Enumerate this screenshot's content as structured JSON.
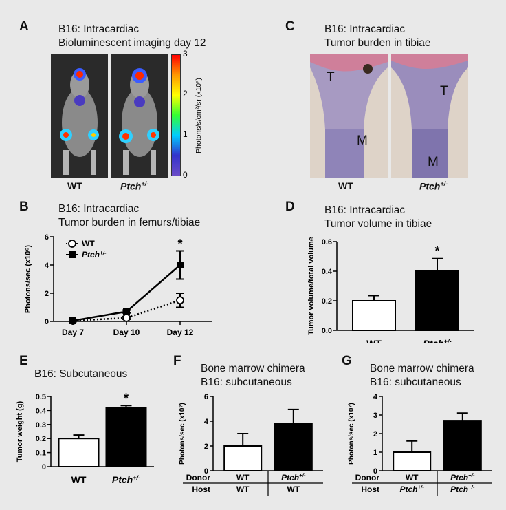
{
  "panelA": {
    "label": "A",
    "title1": "B16: Intracardiac",
    "title2": "Bioluminescent imaging day 12",
    "colorbar_label": "Photons/s/cm²/sr (x10⁵)",
    "colorbar_ticks": [
      "3",
      "2",
      "1",
      "0"
    ],
    "group_wt": "WT",
    "group_ptch_base": "Ptch",
    "group_ptch_sup": "+/-"
  },
  "panelC": {
    "label": "C",
    "title1": "B16: Intracardiac",
    "title2": "Tumor burden in tibiae",
    "mark_t": "T",
    "mark_m": "M",
    "group_wt": "WT",
    "group_ptch_base": "Ptch",
    "group_ptch_sup": "+/-"
  },
  "colors": {
    "background": "#e9e9e9",
    "filled": "#000000",
    "open": "#ffffff"
  },
  "chart_data": [
    {
      "id": "B",
      "label": "B",
      "type": "line",
      "title": "B16: Intracardiac",
      "subtitle": "Tumor burden in femurs/tibiae",
      "ylabel": "Photons/sec (x10⁶)",
      "categories": [
        "Day 7",
        "Day 10",
        "Day 12"
      ],
      "yticks": [
        "0",
        "2",
        "4",
        "6"
      ],
      "ylim": [
        0,
        6
      ],
      "series": [
        {
          "name": "WT",
          "values": [
            0.05,
            0.25,
            1.5
          ],
          "errors": [
            0.05,
            0.1,
            0.5
          ],
          "style": "dotted-open-circle"
        },
        {
          "name": "Ptch+/-",
          "values": [
            0.05,
            0.7,
            4.0
          ],
          "errors": [
            0.05,
            0.1,
            1.0
          ],
          "style": "solid-filled-square"
        }
      ],
      "annotations": [
        "*"
      ]
    },
    {
      "id": "D",
      "label": "D",
      "type": "bar",
      "title": "B16: Intracardiac",
      "subtitle": "Tumor volume in tibiae",
      "ylabel": "Tumor volume/total volume",
      "categories": [
        "WT",
        "Ptch+/-"
      ],
      "values": [
        0.2,
        0.4
      ],
      "errors": [
        0.035,
        0.085
      ],
      "yticks": [
        "0.0",
        "0.2",
        "0.4",
        "0.6"
      ],
      "ylim": [
        0,
        0.6
      ],
      "annotations": [
        "*"
      ]
    },
    {
      "id": "E",
      "label": "E",
      "type": "bar",
      "title": "B16: Subcutaneous",
      "ylabel": "Tumor weight (g)",
      "categories": [
        "WT",
        "Ptch+/-"
      ],
      "values": [
        0.2,
        0.42
      ],
      "errors": [
        0.025,
        0.015
      ],
      "yticks": [
        "0",
        "0.1",
        "0.2",
        "0.3",
        "0.4",
        "0.5"
      ],
      "ylim": [
        0,
        0.5
      ],
      "annotations": [
        "*"
      ]
    },
    {
      "id": "F",
      "label": "F",
      "type": "bar",
      "title": "Bone marrow chimera",
      "subtitle": "B16: subcutaneous",
      "ylabel": "Photons/sec (x10⁷)",
      "categories": [
        "WT",
        "Ptch+/-"
      ],
      "values": [
        2.0,
        3.8
      ],
      "errors": [
        1.0,
        1.15
      ],
      "yticks": [
        "0",
        "2",
        "4",
        "6"
      ],
      "ylim": [
        0,
        6
      ],
      "table": {
        "row1_label": "Donor",
        "row2_label": "Host",
        "donor": [
          "WT",
          "Ptch+/-"
        ],
        "host": [
          "WT",
          "WT"
        ]
      }
    },
    {
      "id": "G",
      "label": "G",
      "type": "bar",
      "title": "Bone marrow chimera",
      "subtitle": "B16: subcutaneous",
      "ylabel": "Photons/sec (x10⁷)",
      "categories": [
        "WT",
        "Ptch+/-"
      ],
      "values": [
        1.0,
        2.7
      ],
      "errors": [
        0.6,
        0.4
      ],
      "yticks": [
        "0",
        "1",
        "2",
        "3",
        "4"
      ],
      "ylim": [
        0,
        4
      ],
      "table": {
        "row1_label": "Donor",
        "row2_label": "Host",
        "donor": [
          "WT",
          "Ptch+/-"
        ],
        "host": [
          "Ptch+/-",
          "Ptch+/-"
        ]
      }
    }
  ]
}
